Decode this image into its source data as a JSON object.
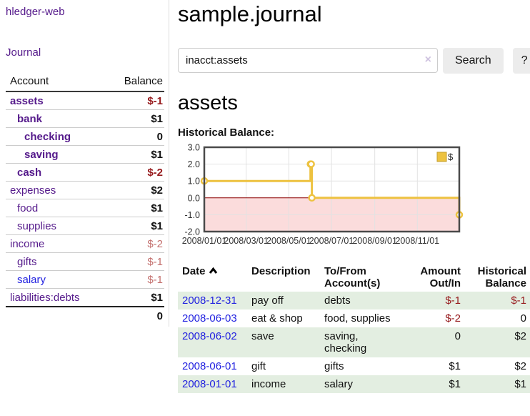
{
  "sidebar": {
    "brand": "hledger-web",
    "nav": {
      "journal_label": "Journal"
    },
    "accounts_table": {
      "headers": {
        "account": "Account",
        "balance": "Balance"
      },
      "rows": [
        {
          "name": "assets",
          "level": 0,
          "matched": true,
          "balance": "$-1",
          "neg": "strong"
        },
        {
          "name": "bank",
          "level": 1,
          "matched": true,
          "balance": "$1",
          "neg": "none"
        },
        {
          "name": "checking",
          "level": 2,
          "matched": true,
          "balance": "0",
          "neg": "none"
        },
        {
          "name": "saving",
          "level": 2,
          "matched": true,
          "balance": "$1",
          "neg": "none"
        },
        {
          "name": "cash",
          "level": 1,
          "matched": true,
          "balance": "$-2",
          "neg": "strong"
        },
        {
          "name": "expenses",
          "level": 0,
          "matched": false,
          "balance": "$2",
          "neg": "none"
        },
        {
          "name": "food",
          "level": 1,
          "matched": false,
          "balance": "$1",
          "neg": "none"
        },
        {
          "name": "supplies",
          "level": 1,
          "matched": false,
          "balance": "$1",
          "neg": "none"
        },
        {
          "name": "income",
          "level": 0,
          "matched": false,
          "balance": "$-2",
          "neg": "light"
        },
        {
          "name": "gifts",
          "level": 1,
          "matched": false,
          "balance": "$-1",
          "neg": "light"
        },
        {
          "name": "salary",
          "level": 1,
          "matched": false,
          "balance": "$-1",
          "neg": "light",
          "link": "blue"
        },
        {
          "name": "liabilities:debts",
          "level": 0,
          "matched": false,
          "balance": "$1",
          "neg": "none"
        }
      ],
      "total": "0"
    }
  },
  "header": {
    "title": "sample.journal"
  },
  "search": {
    "query": "inacct:assets",
    "clear_icon": "×",
    "search_label": "Search",
    "help_label": "?"
  },
  "account_page": {
    "heading": "assets",
    "chart_label": "Historical Balance:"
  },
  "chart_data": {
    "type": "line",
    "step": true,
    "title": "Historical Balance:",
    "series": [
      {
        "name": "$",
        "color": "#edc240",
        "dates": [
          "2008-01-01",
          "2008-06-01",
          "2008-06-02",
          "2008-06-03",
          "2008-12-31"
        ],
        "x_days": [
          0,
          152,
          153,
          154,
          365
        ],
        "values": [
          1,
          2,
          2,
          0,
          -1
        ]
      }
    ],
    "ylim": [
      -2,
      3
    ],
    "y_ticks": [
      {
        "label": "3.0",
        "value": 3
      },
      {
        "label": "2.0",
        "value": 2
      },
      {
        "label": "1.0",
        "value": 1
      },
      {
        "label": "0.0",
        "value": 0
      },
      {
        "label": "-1.0",
        "value": -1
      },
      {
        "label": "-2.0",
        "value": -2
      }
    ],
    "xlim_days": [
      0,
      365
    ],
    "x_ticks": [
      {
        "label": "2008/01/01",
        "day": 0
      },
      {
        "label": "2008/03/01",
        "day": 60
      },
      {
        "label": "2008/05/01",
        "day": 121
      },
      {
        "label": "2008/07/01",
        "day": 182
      },
      {
        "label": "2008/09/01",
        "day": 244
      },
      {
        "label": "2008/11/01",
        "day": 305
      }
    ],
    "legend": {
      "label": "$",
      "position": "top-right"
    },
    "grid": true,
    "colors": {
      "negative_region": "#fbdcdc",
      "zero_line": "#8b0000",
      "gridline": "#e2e2e2",
      "border": "#4a4a4a",
      "tick_text": "#333333"
    }
  },
  "register": {
    "headers": [
      "Date",
      "Description",
      "To/From Account(s)",
      "Amount Out/In",
      "Historical Balance"
    ],
    "rows": [
      {
        "date": "2008-12-31",
        "description": "pay off",
        "accounts": "debts",
        "amount": "$-1",
        "amount_neg": true,
        "balance": "$-1",
        "balance_neg": true
      },
      {
        "date": "2008-06-03",
        "description": "eat & shop",
        "accounts": "food, supplies",
        "amount": "$-2",
        "amount_neg": true,
        "balance": "0",
        "balance_neg": false
      },
      {
        "date": "2008-06-02",
        "description": "save",
        "accounts": "saving,\nchecking",
        "amount": "0",
        "amount_neg": false,
        "balance": "$2",
        "balance_neg": false
      },
      {
        "date": "2008-06-01",
        "description": "gift",
        "accounts": "gifts",
        "amount": "$1",
        "amount_neg": false,
        "balance": "$2",
        "balance_neg": false
      },
      {
        "date": "2008-01-01",
        "description": "income",
        "accounts": "salary",
        "amount": "$1",
        "amount_neg": false,
        "balance": "$1",
        "balance_neg": false
      }
    ]
  }
}
